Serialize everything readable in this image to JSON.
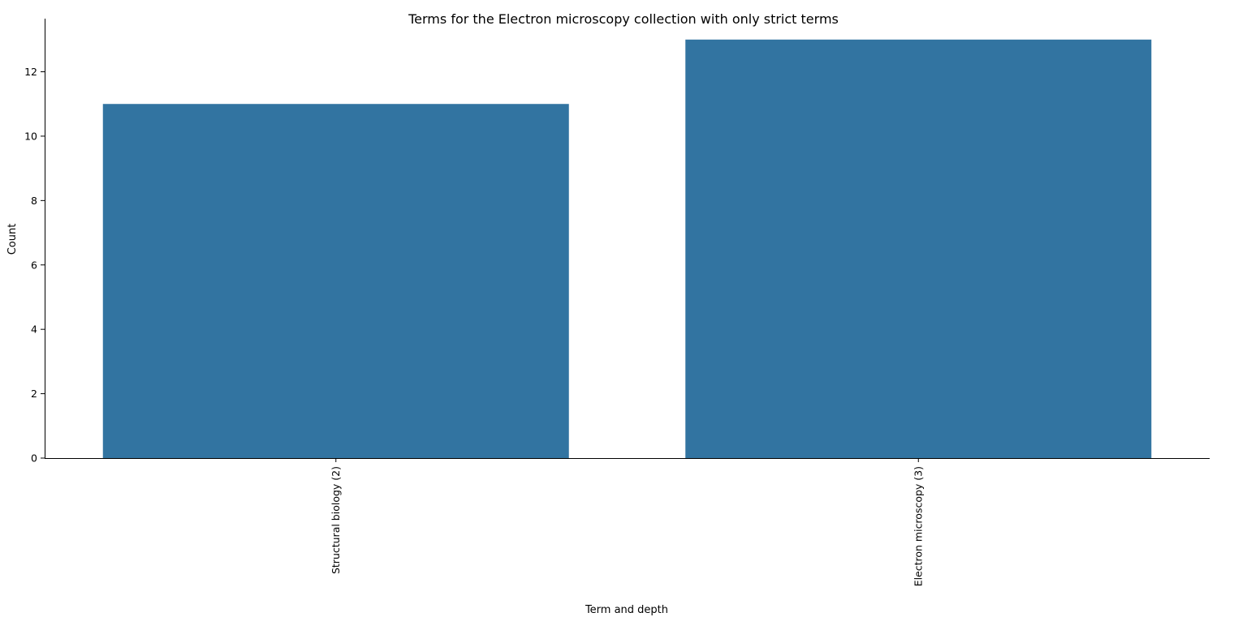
{
  "chart_data": {
    "type": "bar",
    "title": "Terms for the Electron microscopy collection with only strict terms",
    "xlabel": "Term and depth",
    "ylabel": "Count",
    "categories": [
      "Structural biology (2)",
      "Electron microscopy (3)"
    ],
    "values": [
      11,
      13
    ],
    "ylim": [
      0,
      13.65
    ],
    "yticks": [
      0,
      2,
      4,
      6,
      8,
      10,
      12
    ],
    "bar_color": "#3274a1",
    "grid": false,
    "legend": "none"
  }
}
